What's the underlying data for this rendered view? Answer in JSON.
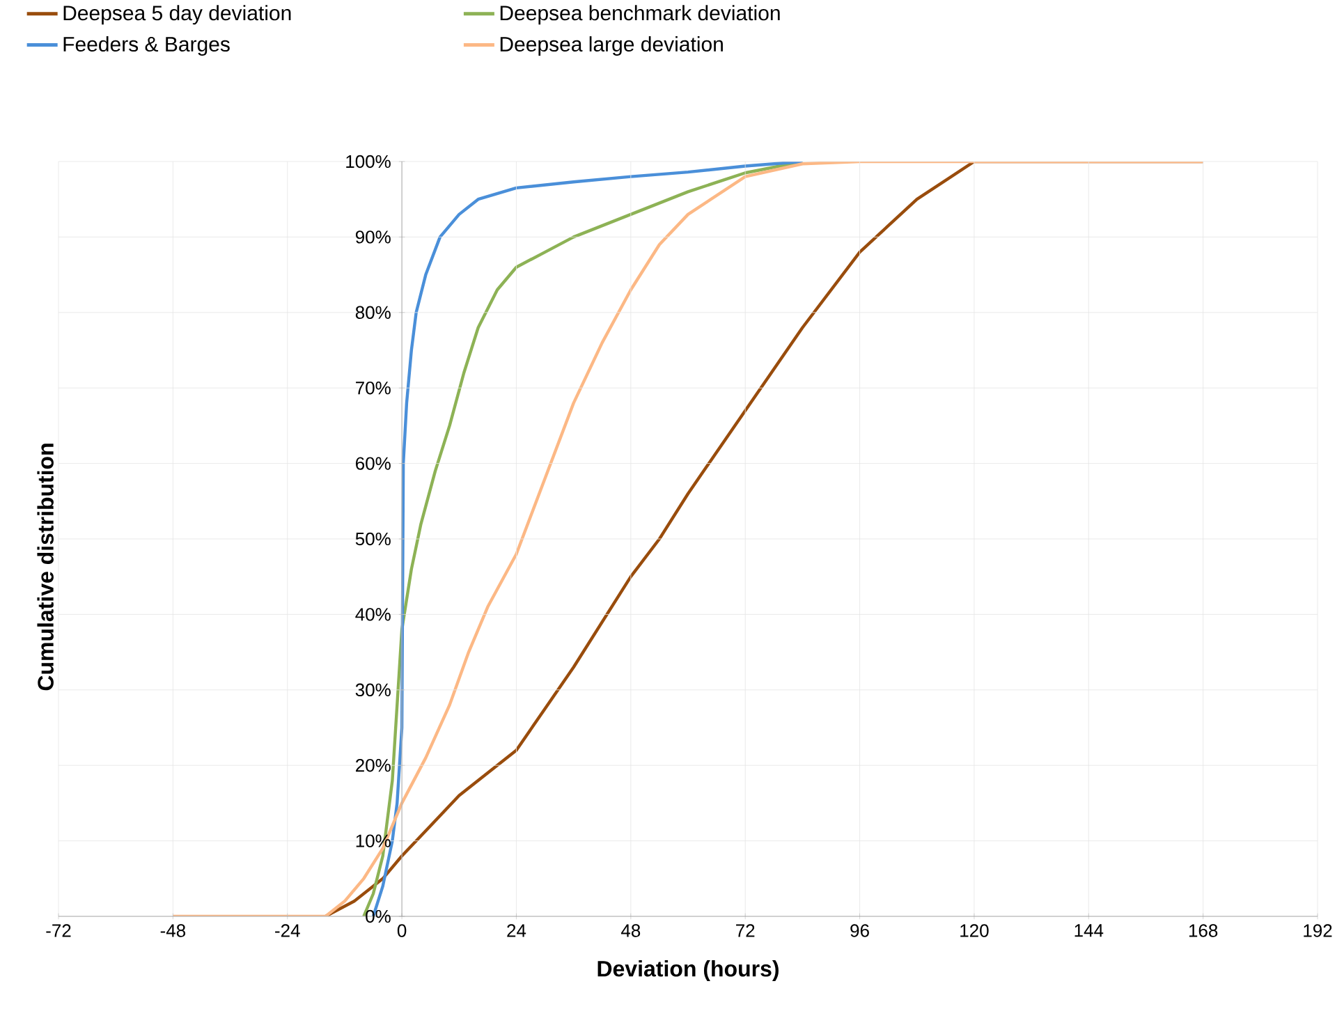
{
  "chart_data": {
    "type": "line",
    "xlabel": "Deviation (hours)",
    "ylabel": "Cumulative distribution",
    "xlim": [
      -72,
      192
    ],
    "xticks": [
      -72,
      -48,
      -24,
      0,
      24,
      48,
      72,
      96,
      120,
      144,
      168,
      192
    ],
    "ylim": [
      0,
      100
    ],
    "yticks": [
      {
        "value": 0,
        "label": "0%"
      },
      {
        "value": 10,
        "label": "10%"
      },
      {
        "value": 20,
        "label": "20%"
      },
      {
        "value": 30,
        "label": "30%"
      },
      {
        "value": 40,
        "label": "40%"
      },
      {
        "value": 50,
        "label": "50%"
      },
      {
        "value": 60,
        "label": "60%"
      },
      {
        "value": 70,
        "label": "70%"
      },
      {
        "value": 80,
        "label": "80%"
      },
      {
        "value": 90,
        "label": "90%"
      },
      {
        "value": 100,
        "label": "100%"
      }
    ],
    "grid": true,
    "legend": "top",
    "line_style": "solid",
    "marker": "none",
    "series": [
      {
        "name": "Deepsea 5 day deviation",
        "color": "#994c0c",
        "x": [
          -16,
          -10,
          -4,
          0,
          6,
          12,
          18,
          24,
          36,
          48,
          54,
          60,
          72,
          84,
          96,
          108,
          120,
          144,
          168
        ],
        "values": [
          0,
          2,
          5,
          8,
          12,
          16,
          19,
          22,
          33,
          45,
          50,
          56,
          67,
          78,
          88,
          95,
          100,
          100,
          100
        ]
      },
      {
        "name": "Deepsea benchmark deviation",
        "color": "#8db255",
        "x": [
          -8,
          -6,
          -4,
          -2,
          0,
          2,
          4,
          7,
          10,
          13,
          16,
          20,
          24,
          30,
          36,
          48,
          60,
          72,
          84
        ],
        "values": [
          0,
          3,
          8,
          18,
          38,
          46,
          52,
          59,
          65,
          72,
          78,
          83,
          86,
          88,
          90,
          93,
          96,
          98.5,
          100
        ]
      },
      {
        "name": "Feeders & Barges",
        "color": "#4a8fd9",
        "x": [
          -6,
          -4,
          -2,
          -1,
          0,
          0.3,
          1,
          2,
          3,
          5,
          8,
          12,
          16,
          24,
          36,
          48,
          60,
          72,
          84
        ],
        "values": [
          0,
          4,
          10,
          15,
          25,
          60,
          68,
          75,
          80,
          85,
          90,
          93,
          95,
          96.5,
          97.3,
          98,
          98.6,
          99.4,
          100
        ]
      },
      {
        "name": "Deepsea large deviation",
        "color": "#fcb885",
        "x": [
          -48,
          -16,
          -12,
          -8,
          -4,
          0,
          5,
          10,
          14,
          18,
          24,
          30,
          36,
          42,
          48,
          54,
          60,
          72,
          84,
          96,
          120,
          168
        ],
        "values": [
          0,
          0,
          2,
          5,
          9,
          15,
          21,
          28,
          35,
          41,
          48,
          58,
          68,
          76,
          83,
          89,
          93,
          98,
          99.7,
          100,
          100,
          100
        ]
      }
    ]
  }
}
